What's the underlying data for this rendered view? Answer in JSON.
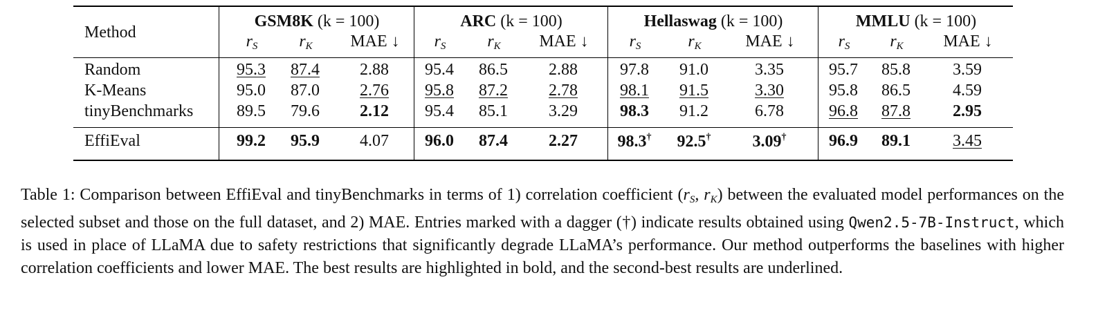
{
  "table": {
    "method_header": "Method",
    "groups": [
      {
        "name": "GSM8K",
        "k_label": "(k = 100)"
      },
      {
        "name": "ARC",
        "k_label": "(k = 100)"
      },
      {
        "name": "Hellaswag",
        "k_label": "(k = 100)"
      },
      {
        "name": "MMLU",
        "k_label": "(k = 100)"
      }
    ],
    "subcolumns": {
      "rs": "r",
      "rs_sub": "S",
      "rk": "r",
      "rk_sub": "K",
      "mae": "MAE ↓"
    },
    "rows": [
      {
        "method": "Random",
        "cells": [
          {
            "v": "95.3",
            "s": "u"
          },
          {
            "v": "87.4",
            "s": "u"
          },
          {
            "v": "2.88",
            "s": ""
          },
          {
            "v": "95.4",
            "s": ""
          },
          {
            "v": "86.5",
            "s": ""
          },
          {
            "v": "2.88",
            "s": ""
          },
          {
            "v": "97.8",
            "s": ""
          },
          {
            "v": "91.0",
            "s": ""
          },
          {
            "v": "3.35",
            "s": ""
          },
          {
            "v": "95.7",
            "s": ""
          },
          {
            "v": "85.8",
            "s": ""
          },
          {
            "v": "3.59",
            "s": ""
          }
        ]
      },
      {
        "method": "K-Means",
        "cells": [
          {
            "v": "95.0",
            "s": ""
          },
          {
            "v": "87.0",
            "s": ""
          },
          {
            "v": "2.76",
            "s": "u"
          },
          {
            "v": "95.8",
            "s": "u"
          },
          {
            "v": "87.2",
            "s": "u"
          },
          {
            "v": "2.78",
            "s": "u"
          },
          {
            "v": "98.1",
            "s": "u"
          },
          {
            "v": "91.5",
            "s": "u"
          },
          {
            "v": "3.30",
            "s": "u"
          },
          {
            "v": "95.8",
            "s": ""
          },
          {
            "v": "86.5",
            "s": ""
          },
          {
            "v": "4.59",
            "s": ""
          }
        ]
      },
      {
        "method": "tinyBenchmarks",
        "cells": [
          {
            "v": "89.5",
            "s": ""
          },
          {
            "v": "79.6",
            "s": ""
          },
          {
            "v": "2.12",
            "s": "b"
          },
          {
            "v": "95.4",
            "s": ""
          },
          {
            "v": "85.1",
            "s": ""
          },
          {
            "v": "3.29",
            "s": ""
          },
          {
            "v": "98.3",
            "s": "b"
          },
          {
            "v": "91.2",
            "s": ""
          },
          {
            "v": "6.78",
            "s": ""
          },
          {
            "v": "96.8",
            "s": "u"
          },
          {
            "v": "87.8",
            "s": "u"
          },
          {
            "v": "2.95",
            "s": "b"
          }
        ]
      }
    ],
    "ours": {
      "method": "EffiEval",
      "cells": [
        {
          "v": "99.2",
          "s": "b"
        },
        {
          "v": "95.9",
          "s": "b"
        },
        {
          "v": "4.07",
          "s": ""
        },
        {
          "v": "96.0",
          "s": "b"
        },
        {
          "v": "87.4",
          "s": "b"
        },
        {
          "v": "2.27",
          "s": "b"
        },
        {
          "v": "98.3",
          "s": "b",
          "mark": "†"
        },
        {
          "v": "92.5",
          "s": "b",
          "mark": "†"
        },
        {
          "v": "3.09",
          "s": "b",
          "mark": "†"
        },
        {
          "v": "96.9",
          "s": "b"
        },
        {
          "v": "89.1",
          "s": "b"
        },
        {
          "v": "3.45",
          "s": "u"
        }
      ]
    }
  },
  "caption": {
    "part1": "Table 1: Comparison between EffiEval and tinyBenchmarks in terms of 1) correlation coefficient (",
    "r1": "r",
    "r1_sub": "S",
    "comma": ", ",
    "r2": "r",
    "r2_sub": "K",
    "part2": ") between the evaluated model performances on the selected subset and those on the full dataset, and 2) MAE. Entries marked with a dagger (†) indicate results obtained using ",
    "model": "Qwen2.5-7B-Instruct",
    "part3": ", which is used in place of LLaMA due to safety restrictions that significantly degrade LLaMA’s performance. Our method outperforms the baselines with higher correlation coefficients and lower MAE. The best results are highlighted in bold, and the second-best results are underlined."
  }
}
